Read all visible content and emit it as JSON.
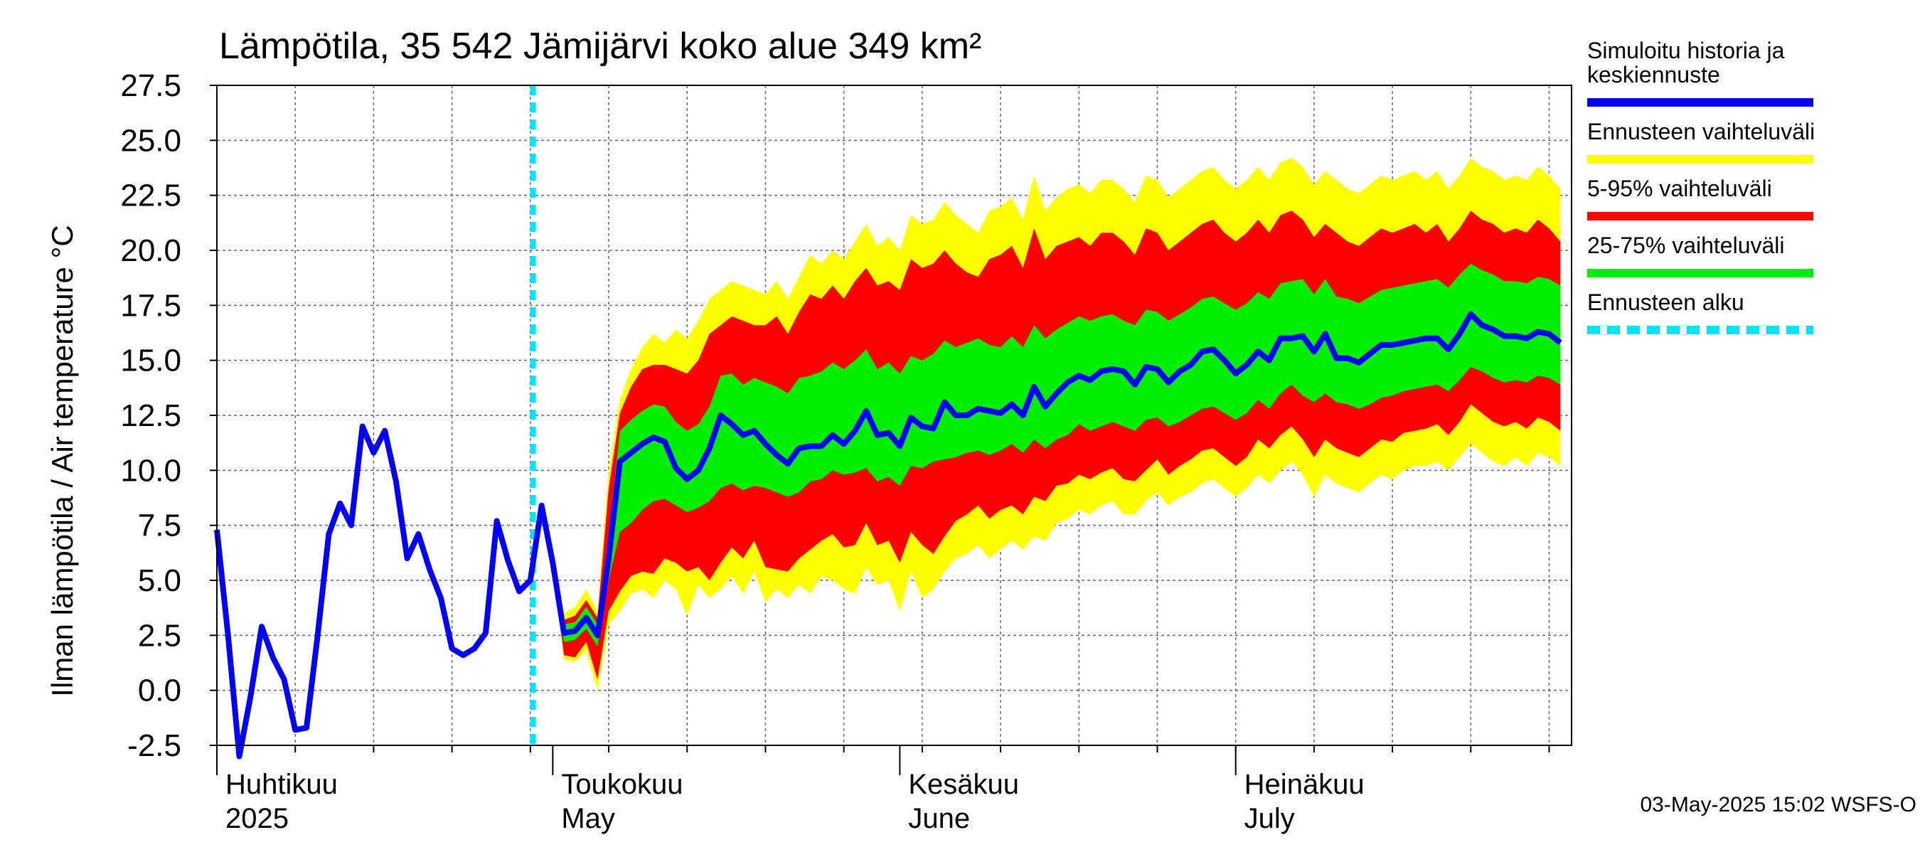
{
  "chart_data": {
    "type": "area",
    "title": "Lämpötila, 35 542 Jämijärvi koko alue 349 km²",
    "ylabel": "Ilman lämpötila / Air temperature    °C",
    "ylim": [
      -2.5,
      27.5
    ],
    "yticks": [
      "-2.5",
      "0.0",
      "2.5",
      "5.0",
      "7.5",
      "10.0",
      "12.5",
      "15.0",
      "17.5",
      "20.0",
      "22.5",
      "25.0",
      "27.5"
    ],
    "xlim": [
      "2025-04-01",
      "2025-07-31"
    ],
    "months": [
      {
        "fi": "Huhtikuu",
        "en": "2025",
        "date": "2025-04-01"
      },
      {
        "fi": "Toukokuu",
        "en": "May",
        "date": "2025-05-01"
      },
      {
        "fi": "Kesäkuu",
        "en": "June",
        "date": "2025-06-01"
      },
      {
        "fi": "Heinäkuu",
        "en": "July",
        "date": "2025-07-01"
      }
    ],
    "grid": true,
    "forecast_start": "2025-04-30",
    "history": {
      "dates": [
        "2025-04-01",
        "2025-04-02",
        "2025-04-03",
        "2025-04-04",
        "2025-04-05",
        "2025-04-06",
        "2025-04-07",
        "2025-04-08",
        "2025-04-09",
        "2025-04-10",
        "2025-04-11",
        "2025-04-12",
        "2025-04-13",
        "2025-04-14",
        "2025-04-15",
        "2025-04-16",
        "2025-04-17",
        "2025-04-18",
        "2025-04-19",
        "2025-04-20",
        "2025-04-21",
        "2025-04-22",
        "2025-04-23",
        "2025-04-24",
        "2025-04-25",
        "2025-04-26",
        "2025-04-27",
        "2025-04-28",
        "2025-04-29",
        "2025-04-30"
      ],
      "values": [
        7.3,
        2.5,
        -3.0,
        -0.3,
        2.9,
        1.5,
        0.5,
        -1.8,
        -1.7,
        2.5,
        7.1,
        8.5,
        7.5,
        12.0,
        10.8,
        11.8,
        9.5,
        6.0,
        7.1,
        5.5,
        4.2,
        1.9,
        1.6,
        1.9,
        2.6,
        7.7,
        5.9,
        4.5,
        5.0,
        8.4
      ]
    },
    "forecast": {
      "start": "2025-04-30",
      "median": [
        8.4,
        5.8,
        2.6,
        2.7,
        3.3,
        2.5,
        6.0,
        10.4,
        10.8,
        11.2,
        11.5,
        11.3,
        10.1,
        9.6,
        10.0,
        11.0,
        12.5,
        12.1,
        11.6,
        11.8,
        11.2,
        10.7,
        10.3,
        11.0,
        11.1,
        11.1,
        11.6,
        11.2,
        11.8,
        12.7,
        11.6,
        11.7,
        11.1,
        12.4,
        12.0,
        11.9,
        13.1,
        12.5,
        12.5,
        12.8,
        12.7,
        12.6,
        13.0,
        12.5,
        13.8,
        12.9,
        13.5,
        14.0,
        14.3,
        14.1,
        14.5,
        14.6,
        14.5,
        13.9,
        14.7,
        14.6,
        14.0,
        14.5,
        14.8,
        15.4,
        15.5,
        15.0,
        14.4,
        14.8,
        15.4,
        15.0,
        16.0,
        16.0,
        16.1,
        15.4,
        16.2,
        15.1,
        15.1,
        14.9,
        15.3,
        15.7,
        15.7,
        15.8,
        15.9,
        16.0,
        16.0,
        15.5,
        16.2,
        17.1,
        16.6,
        16.4,
        16.1,
        16.1,
        16.0,
        16.3,
        16.2,
        15.8
      ],
      "p25": [
        8.4,
        5.8,
        2.2,
        2.3,
        2.8,
        2.0,
        5.0,
        7.2,
        7.6,
        8.2,
        8.6,
        8.7,
        8.4,
        8.1,
        8.3,
        8.6,
        9.2,
        9.4,
        9.1,
        9.3,
        9.2,
        9.0,
        8.8,
        9.0,
        9.5,
        9.6,
        10.0,
        9.8,
        9.9,
        10.1,
        9.5,
        9.7,
        9.3,
        10.2,
        10.1,
        10.4,
        10.5,
        10.6,
        10.8,
        10.9,
        10.7,
        10.9,
        11.2,
        10.8,
        11.4,
        11.0,
        11.4,
        11.6,
        12.1,
        11.8,
        12.0,
        12.2,
        12.0,
        11.8,
        12.3,
        12.4,
        12.0,
        12.2,
        12.5,
        12.8,
        12.9,
        12.6,
        12.3,
        12.6,
        13.2,
        12.8,
        13.5,
        13.9,
        13.4,
        13.1,
        13.5,
        13.1,
        13.0,
        12.8,
        13.0,
        13.3,
        13.4,
        13.6,
        13.7,
        13.8,
        13.9,
        13.6,
        14.1,
        14.7,
        14.5,
        14.2,
        14.0,
        14.1,
        14.0,
        14.3,
        14.2,
        13.9
      ],
      "p75": [
        8.4,
        5.8,
        3.0,
        3.1,
        3.8,
        3.0,
        7.0,
        11.8,
        12.3,
        12.7,
        13.0,
        12.9,
        12.2,
        11.8,
        12.1,
        12.9,
        14.3,
        14.4,
        13.9,
        14.2,
        14.0,
        13.8,
        13.5,
        14.2,
        14.3,
        14.5,
        14.9,
        14.6,
        15.0,
        15.5,
        14.6,
        14.9,
        14.4,
        15.2,
        15.0,
        15.3,
        15.9,
        15.6,
        15.8,
        16.0,
        15.7,
        15.6,
        16.1,
        15.6,
        16.6,
        16.0,
        16.4,
        16.7,
        17.0,
        16.8,
        17.0,
        17.1,
        16.8,
        16.6,
        17.3,
        17.2,
        16.8,
        17.1,
        17.4,
        17.8,
        17.9,
        17.6,
        17.3,
        17.6,
        18.1,
        17.8,
        18.5,
        18.6,
        18.7,
        18.0,
        18.7,
        17.9,
        17.8,
        17.6,
        17.9,
        18.2,
        18.3,
        18.4,
        18.5,
        18.6,
        18.7,
        18.3,
        18.9,
        19.4,
        19.1,
        18.9,
        18.6,
        18.6,
        18.5,
        18.8,
        18.7,
        18.4
      ],
      "p5": [
        8.4,
        5.8,
        1.6,
        1.5,
        2.2,
        0.5,
        3.6,
        4.5,
        5.2,
        5.4,
        5.3,
        6.0,
        5.8,
        5.4,
        5.6,
        5.0,
        5.8,
        6.5,
        6.0,
        6.8,
        5.6,
        5.5,
        5.4,
        6.0,
        6.4,
        6.8,
        7.1,
        6.5,
        6.6,
        7.6,
        6.6,
        6.8,
        5.8,
        7.2,
        6.6,
        6.2,
        7.0,
        7.7,
        8.0,
        8.4,
        7.8,
        8.2,
        8.4,
        8.0,
        8.8,
        8.6,
        9.3,
        9.4,
        9.8,
        9.6,
        9.9,
        10.1,
        9.6,
        9.5,
        10.0,
        10.5,
        9.8,
        10.2,
        10.5,
        10.9,
        11.0,
        10.6,
        10.2,
        10.6,
        11.4,
        11.0,
        11.6,
        12.0,
        11.4,
        10.6,
        11.4,
        11.0,
        10.8,
        10.6,
        11.0,
        11.4,
        11.3,
        11.7,
        11.8,
        11.9,
        12.1,
        11.6,
        12.2,
        13.0,
        12.6,
        12.2,
        12.0,
        12.2,
        11.9,
        12.4,
        12.2,
        11.8
      ],
      "p95": [
        8.4,
        5.8,
        3.2,
        3.4,
        4.1,
        3.3,
        9.2,
        12.6,
        13.8,
        14.6,
        14.8,
        14.8,
        14.6,
        14.4,
        15.0,
        16.2,
        16.6,
        17.0,
        16.8,
        16.6,
        16.6,
        17.0,
        16.2,
        17.2,
        18.0,
        17.8,
        18.4,
        17.8,
        18.6,
        19.2,
        18.4,
        18.6,
        18.2,
        19.6,
        19.2,
        19.4,
        20.0,
        19.4,
        19.0,
        18.8,
        19.6,
        19.8,
        20.2,
        19.2,
        21.0,
        19.6,
        20.2,
        20.4,
        20.6,
        20.2,
        20.8,
        20.8,
        20.4,
        19.8,
        21.0,
        20.8,
        20.0,
        20.4,
        20.8,
        21.2,
        21.4,
        20.8,
        20.4,
        20.8,
        21.4,
        20.8,
        21.6,
        21.8,
        21.4,
        20.6,
        21.2,
        20.8,
        20.4,
        20.2,
        20.6,
        21.0,
        20.8,
        21.0,
        21.2,
        20.8,
        21.2,
        20.4,
        21.0,
        21.8,
        21.4,
        21.2,
        20.8,
        21.0,
        20.8,
        21.4,
        21.0,
        20.4
      ],
      "min": [
        8.4,
        5.8,
        1.4,
        1.3,
        1.8,
        0.0,
        3.0,
        3.6,
        4.4,
        4.6,
        4.2,
        5.0,
        4.6,
        3.4,
        4.8,
        4.2,
        4.6,
        5.2,
        4.4,
        5.4,
        4.0,
        4.6,
        4.2,
        4.8,
        4.4,
        5.2,
        5.0,
        4.6,
        4.4,
        5.6,
        4.8,
        5.0,
        3.6,
        5.4,
        4.2,
        4.6,
        5.4,
        6.0,
        6.2,
        6.6,
        6.0,
        6.4,
        6.8,
        6.4,
        7.0,
        6.8,
        7.6,
        7.8,
        8.2,
        8.0,
        8.4,
        8.6,
        8.0,
        8.0,
        8.6,
        9.0,
        8.4,
        8.8,
        9.0,
        9.4,
        9.6,
        9.2,
        8.8,
        9.2,
        9.8,
        9.4,
        10.0,
        10.4,
        9.8,
        8.8,
        9.8,
        9.4,
        9.2,
        9.0,
        9.4,
        9.8,
        9.6,
        10.0,
        10.2,
        10.2,
        10.4,
        10.0,
        10.6,
        11.2,
        10.8,
        10.4,
        10.2,
        10.6,
        10.2,
        10.8,
        10.6,
        10.2
      ],
      "max": [
        8.4,
        5.8,
        3.5,
        3.8,
        4.6,
        3.6,
        10.0,
        13.2,
        14.6,
        15.6,
        16.2,
        15.8,
        16.4,
        16.0,
        16.8,
        17.8,
        18.2,
        18.6,
        18.4,
        18.2,
        18.0,
        18.6,
        17.8,
        18.8,
        19.8,
        19.4,
        20.0,
        19.6,
        20.4,
        21.2,
        20.2,
        20.6,
        20.0,
        21.6,
        21.2,
        21.4,
        22.2,
        21.6,
        21.2,
        20.8,
        21.8,
        22.0,
        22.4,
        21.4,
        23.4,
        21.8,
        22.4,
        22.8,
        23.0,
        22.6,
        23.2,
        23.2,
        22.8,
        22.2,
        23.4,
        23.2,
        22.4,
        22.8,
        23.2,
        23.6,
        23.8,
        23.2,
        22.8,
        23.2,
        23.8,
        23.2,
        24.0,
        24.2,
        23.8,
        23.0,
        23.6,
        23.2,
        22.8,
        22.6,
        23.0,
        23.4,
        23.2,
        23.4,
        23.6,
        23.2,
        23.6,
        22.8,
        23.4,
        24.2,
        23.8,
        23.6,
        23.2,
        23.4,
        23.2,
        23.8,
        23.4,
        22.8
      ]
    },
    "legend": [
      {
        "label": "Simuloitu historia ja keskiennuste",
        "color": "#0000ff",
        "style": "solid"
      },
      {
        "label": "Ennusteen vaihteluväli",
        "color": "#ffff00",
        "style": "solid"
      },
      {
        "label": "5-95% vaihteluväli",
        "color": "#ff0000",
        "style": "solid"
      },
      {
        "label": "25-75% vaihteluväli",
        "color": "#00ee00",
        "style": "solid"
      },
      {
        "label": "Ennusteen alku",
        "color": "#00e5ff",
        "style": "dashed"
      }
    ],
    "legend_placement": "right",
    "footer": "03-May-2025 15:02 WSFS-O"
  }
}
